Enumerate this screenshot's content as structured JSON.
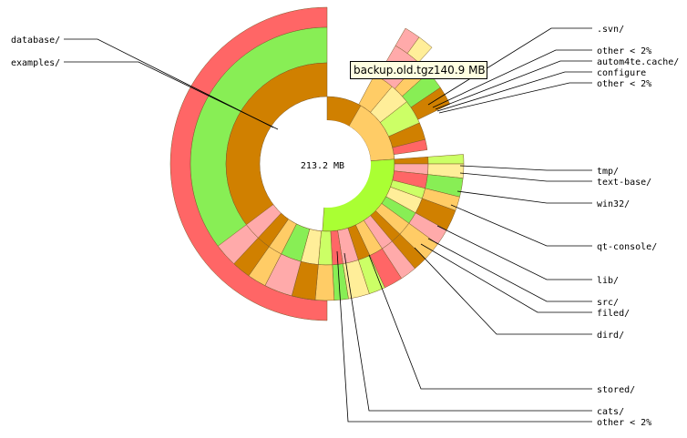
{
  "center_label": "213.2 MB",
  "tooltip": "backup.old.tgz140.9 MB",
  "colors": {
    "outer_red": "#ff6666",
    "ring_green": "#88ee55",
    "ring_orange": "#d08000",
    "inner_green": "#aaff33",
    "light_orange": "#ffcc66",
    "pink": "#ffaaaa",
    "pale_yellow": "#ffee99",
    "yellow_green": "#ccff66",
    "dark_line": "#000000"
  },
  "labels_left": [
    "database/",
    "examples/"
  ],
  "labels_right": [
    ".svn/",
    "other < 2%",
    "autom4te.cache/",
    "configure",
    "other < 2%",
    "tmp/",
    "text-base/",
    "win32/",
    "qt-console/",
    "lib/",
    "src/",
    "filed/",
    "dird/",
    "stored/",
    "cats/",
    "other < 2%"
  ],
  "chart_data": {
    "type": "sunburst",
    "total": "213.2 MB",
    "highlighted": {
      "name": "backup.old.tgz",
      "size": "140.9 MB"
    },
    "labels": [
      "database/",
      "examples/",
      ".svn/",
      "other < 2%",
      "autom4te.cache/",
      "configure",
      "other < 2%",
      "tmp/",
      "text-base/",
      "win32/",
      "qt-console/",
      "lib/",
      "src/",
      "filed/",
      "dird/",
      "stored/",
      "cats/",
      "other < 2%"
    ]
  }
}
